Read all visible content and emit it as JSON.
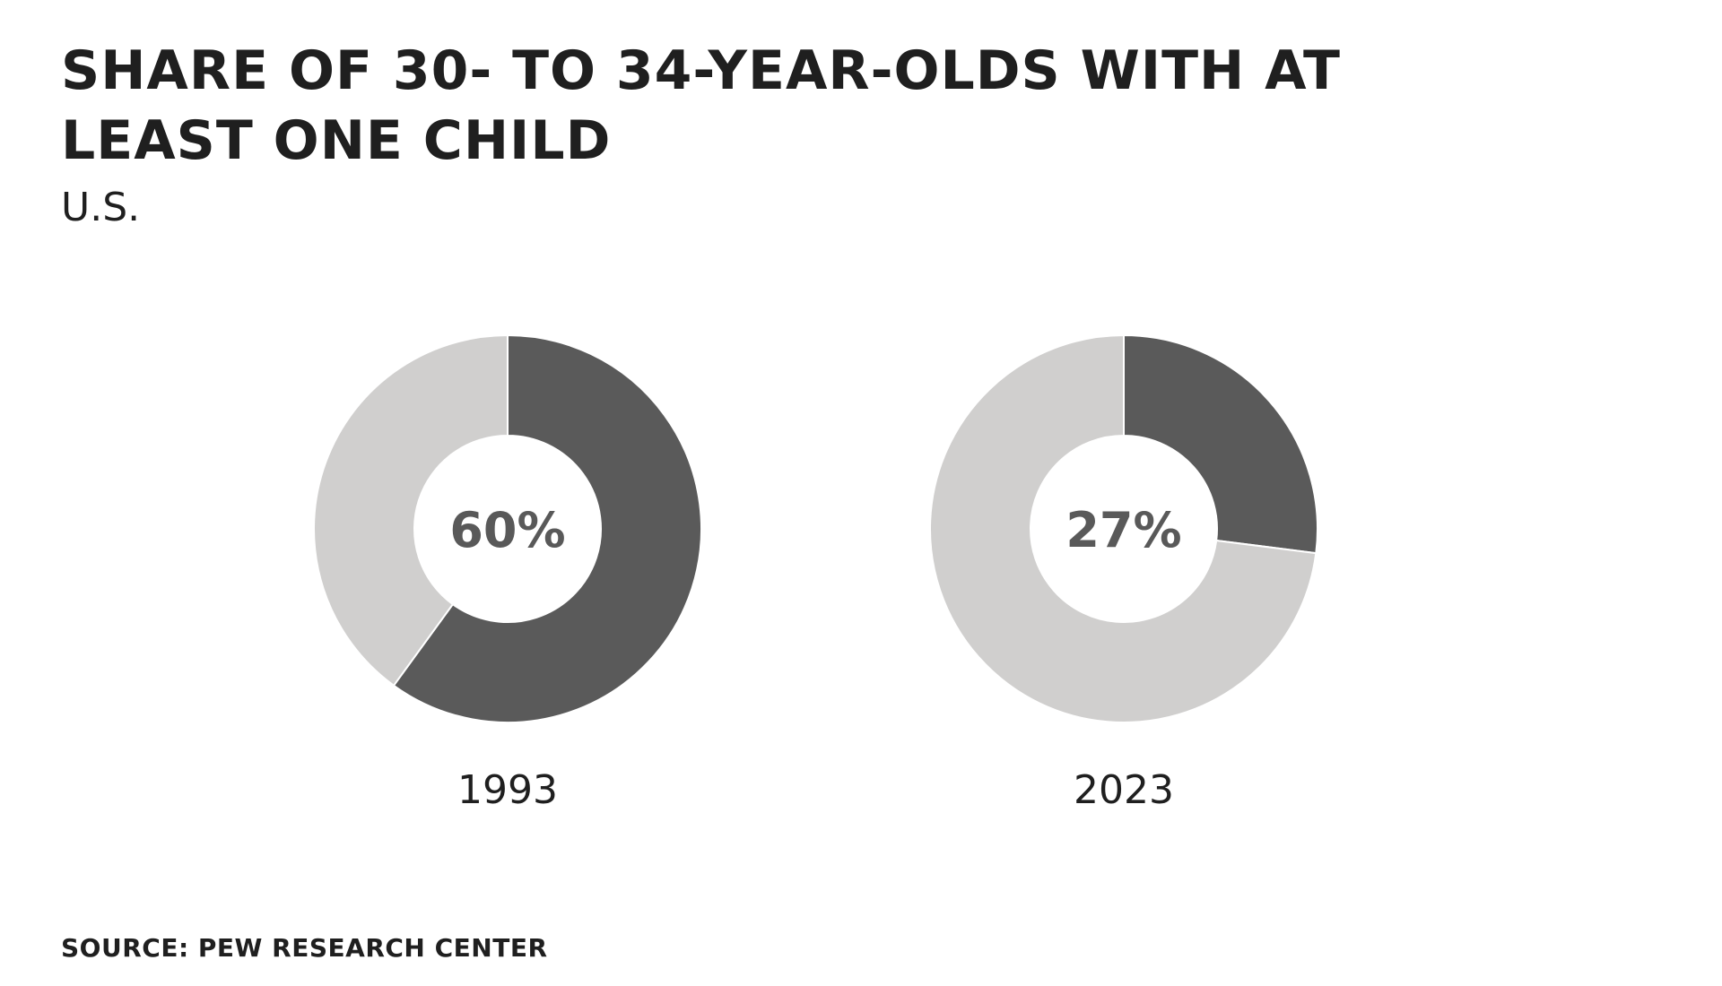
{
  "title": "SHARE OF 30- TO 34-YEAR-OLDS WITH AT LEAST ONE CHILD",
  "subtitle": "U.S.",
  "source": "SOURCE: PEW RESEARCH CENTER",
  "colors": {
    "filled": "#5a5a5a",
    "remainder": "#d0cfce",
    "center_text": "#595959",
    "year_text": "#1f1f1f",
    "background": "#ffffff"
  },
  "chart_data": [
    {
      "type": "pie",
      "label": "1993",
      "center_label": "60%",
      "values": [
        60,
        40
      ]
    },
    {
      "type": "pie",
      "label": "2023",
      "center_label": "27%",
      "values": [
        27,
        73
      ]
    }
  ]
}
